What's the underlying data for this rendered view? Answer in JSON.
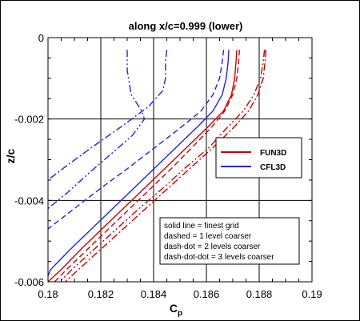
{
  "chart_data": {
    "type": "line",
    "title": "along x/c=0.999 (lower)",
    "xlabel": "C",
    "xlabel_sub": "p",
    "ylabel": "z/c",
    "xlim": [
      0.18,
      0.19
    ],
    "ylim": [
      -0.006,
      0
    ],
    "xticks": [
      "0.18",
      "0.182",
      "0.184",
      "0.186",
      "0.188",
      "0.19"
    ],
    "yticks": [
      "0",
      "-0.002",
      "-0.004",
      "-0.006"
    ],
    "grid": true,
    "legend": {
      "placement": "center-right",
      "entries": [
        {
          "label": "FUN3D",
          "color": "#cc0000"
        },
        {
          "label": "CFL3D",
          "color": "#2222dd"
        }
      ]
    },
    "notes": [
      "solid line = finest grid",
      "dashed = 1 level coarser",
      "dash-dot = 2 levels coarser",
      "dash-dot-dot = 3 levels coarser"
    ],
    "series": [
      {
        "color": "#cc0000",
        "dash": "solid",
        "points": [
          [
            0.18715,
            -0.0003
          ],
          [
            0.18712,
            -0.0006
          ],
          [
            0.18707,
            -0.001
          ],
          [
            0.18695,
            -0.0014
          ],
          [
            0.18665,
            -0.0018
          ],
          [
            0.18605,
            -0.0022
          ],
          [
            0.18525,
            -0.0027
          ],
          [
            0.18445,
            -0.0032
          ],
          [
            0.18365,
            -0.0037
          ],
          [
            0.18285,
            -0.0042
          ],
          [
            0.18205,
            -0.0047
          ],
          [
            0.18125,
            -0.0052
          ],
          [
            0.1805,
            -0.0057
          ],
          [
            0.18,
            -0.006
          ]
        ]
      },
      {
        "color": "#2222dd",
        "dash": "solid",
        "points": [
          [
            0.18685,
            -0.0003
          ],
          [
            0.18682,
            -0.0006
          ],
          [
            0.18675,
            -0.001
          ],
          [
            0.1866,
            -0.0014
          ],
          [
            0.18625,
            -0.0018
          ],
          [
            0.18565,
            -0.0022
          ],
          [
            0.18485,
            -0.0027
          ],
          [
            0.18405,
            -0.0032
          ],
          [
            0.18325,
            -0.0037
          ],
          [
            0.18245,
            -0.0042
          ],
          [
            0.18165,
            -0.0047
          ],
          [
            0.18085,
            -0.0052
          ],
          [
            0.1801,
            -0.0057
          ],
          [
            0.18,
            -0.00585
          ]
        ]
      },
      {
        "color": "#cc0000",
        "dash": "dash",
        "points": [
          [
            0.18725,
            -0.0003
          ],
          [
            0.18722,
            -0.0006
          ],
          [
            0.18715,
            -0.001
          ],
          [
            0.187,
            -0.0014
          ],
          [
            0.1867,
            -0.0018
          ],
          [
            0.1862,
            -0.0022
          ],
          [
            0.18545,
            -0.0027
          ],
          [
            0.1847,
            -0.0032
          ],
          [
            0.1839,
            -0.0037
          ],
          [
            0.1831,
            -0.0042
          ],
          [
            0.1823,
            -0.0047
          ],
          [
            0.1815,
            -0.0052
          ],
          [
            0.1807,
            -0.0057
          ],
          [
            0.18025,
            -0.006
          ]
        ]
      },
      {
        "color": "#2222dd",
        "dash": "dash",
        "points": [
          [
            0.18665,
            -0.0003
          ],
          [
            0.1866,
            -0.0006
          ],
          [
            0.1865,
            -0.001
          ],
          [
            0.18625,
            -0.0014
          ],
          [
            0.1858,
            -0.0018
          ],
          [
            0.18505,
            -0.0022
          ],
          [
            0.18405,
            -0.0027
          ],
          [
            0.18305,
            -0.0032
          ],
          [
            0.182,
            -0.0037
          ],
          [
            0.181,
            -0.0042
          ],
          [
            0.18,
            -0.0047
          ]
        ]
      },
      {
        "color": "#cc0000",
        "dash": "dashdot",
        "points": [
          [
            0.18825,
            -0.0003
          ],
          [
            0.18822,
            -0.0006
          ],
          [
            0.18815,
            -0.001
          ],
          [
            0.18795,
            -0.0014
          ],
          [
            0.1876,
            -0.0018
          ],
          [
            0.18705,
            -0.0022
          ],
          [
            0.18625,
            -0.0027
          ],
          [
            0.1854,
            -0.0032
          ],
          [
            0.18455,
            -0.0037
          ],
          [
            0.1837,
            -0.0042
          ],
          [
            0.18285,
            -0.0047
          ],
          [
            0.182,
            -0.0052
          ],
          [
            0.18115,
            -0.0057
          ],
          [
            0.18065,
            -0.006
          ]
        ]
      },
      {
        "color": "#2222dd",
        "dash": "dashdot",
        "points": [
          [
            0.1845,
            -0.0003
          ],
          [
            0.18445,
            -0.0006
          ],
          [
            0.18445,
            -0.001
          ],
          [
            0.18435,
            -0.0013
          ],
          [
            0.1838,
            -0.0017
          ],
          [
            0.18275,
            -0.0022
          ],
          [
            0.18165,
            -0.0027
          ],
          [
            0.1806,
            -0.0032
          ],
          [
            0.18,
            -0.0035
          ]
        ]
      },
      {
        "color": "#cc0000",
        "dash": "dashdotdot",
        "points": [
          [
            0.1882,
            -0.0003
          ],
          [
            0.18815,
            -0.0006
          ],
          [
            0.18805,
            -0.001
          ],
          [
            0.1878,
            -0.0014
          ],
          [
            0.1874,
            -0.0018
          ],
          [
            0.1868,
            -0.0022
          ],
          [
            0.1861,
            -0.0027
          ],
          [
            0.1852,
            -0.0032
          ],
          [
            0.18435,
            -0.0037
          ],
          [
            0.18345,
            -0.0042
          ],
          [
            0.1826,
            -0.0047
          ],
          [
            0.18175,
            -0.0052
          ],
          [
            0.1809,
            -0.0057
          ],
          [
            0.18045,
            -0.006
          ]
        ]
      },
      {
        "color": "#2222dd",
        "dash": "dashdotdot",
        "points": [
          [
            0.183,
            -0.0003
          ],
          [
            0.183,
            -0.0008
          ],
          [
            0.18315,
            -0.0014
          ],
          [
            0.18355,
            -0.0018
          ],
          [
            0.18365,
            -0.002
          ],
          [
            0.1832,
            -0.0024
          ],
          [
            0.1825,
            -0.0028
          ],
          [
            0.1816,
            -0.0033
          ],
          [
            0.18075,
            -0.0038
          ],
          [
            0.18,
            -0.0042
          ]
        ]
      }
    ]
  }
}
